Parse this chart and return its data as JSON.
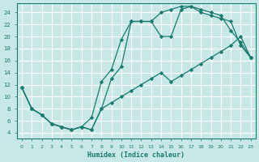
{
  "xlabel": "Humidex (Indice chaleur)",
  "background_color": "#c8e8e8",
  "grid_color": "#ffffff",
  "line_color": "#1a7a6e",
  "xlim": [
    -0.5,
    23.5
  ],
  "ylim": [
    3,
    25.5
  ],
  "yticks": [
    4,
    6,
    8,
    10,
    12,
    14,
    16,
    18,
    20,
    22,
    24
  ],
  "xticks": [
    0,
    1,
    2,
    3,
    4,
    5,
    6,
    7,
    8,
    9,
    10,
    11,
    12,
    13,
    14,
    15,
    16,
    17,
    18,
    19,
    20,
    21,
    22,
    23
  ],
  "curve1_x": [
    0,
    1,
    2,
    3,
    4,
    5,
    6,
    7,
    8,
    9,
    10,
    11,
    12,
    13,
    14,
    15,
    16,
    17,
    18,
    19,
    20,
    21,
    22,
    23
  ],
  "curve1_y": [
    11.5,
    8,
    7,
    5.5,
    5,
    4.5,
    5,
    4.5,
    8,
    13,
    15,
    22.5,
    22.5,
    22.5,
    20,
    20,
    24.5,
    25,
    24.5,
    24,
    23.5,
    21,
    19,
    16.5
  ],
  "curve2_x": [
    0,
    1,
    2,
    3,
    4,
    5,
    6,
    7,
    8,
    9,
    10,
    11,
    12,
    13,
    14,
    15,
    16,
    17,
    18,
    19,
    20,
    21,
    22,
    23
  ],
  "curve2_y": [
    11.5,
    8,
    7,
    5.5,
    5,
    4.5,
    5,
    6.5,
    12.5,
    14.5,
    19.5,
    22.5,
    22.5,
    22.5,
    24,
    24.5,
    25,
    25,
    24,
    23.5,
    23,
    22.5,
    18.5,
    16.5
  ],
  "curve3_x": [
    0,
    1,
    2,
    3,
    4,
    5,
    6,
    7,
    8,
    9,
    10,
    11,
    12,
    13,
    14,
    15,
    16,
    17,
    18,
    19,
    20,
    21,
    22,
    23
  ],
  "curve3_y": [
    11.5,
    8,
    7,
    5.5,
    5,
    4.5,
    5,
    4.5,
    8,
    9,
    10,
    11,
    12,
    13,
    14,
    12.5,
    13.5,
    14.5,
    15.5,
    16.5,
    17.5,
    18.5,
    20,
    16.5
  ]
}
